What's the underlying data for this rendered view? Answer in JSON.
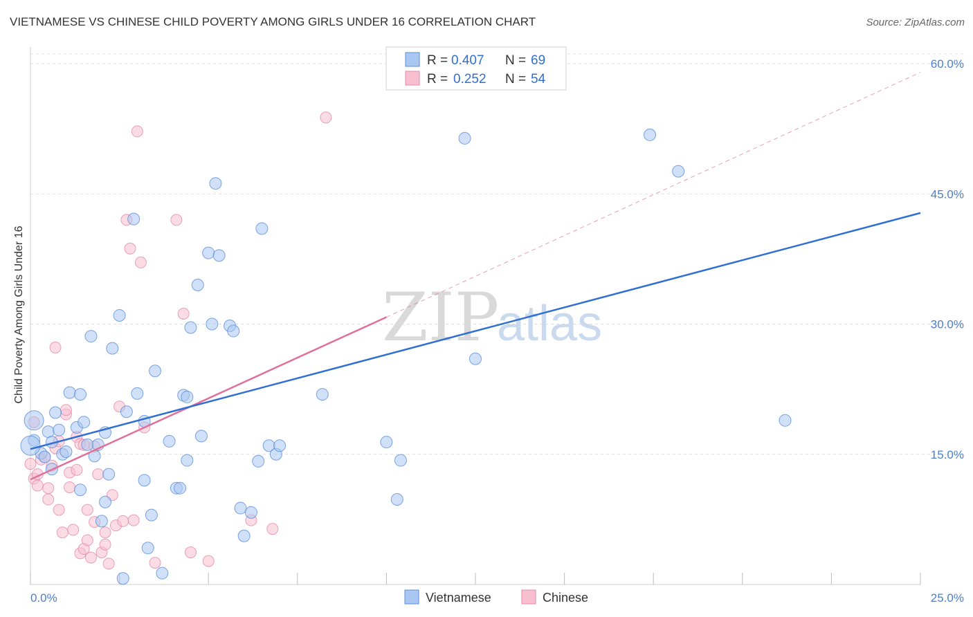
{
  "title": "VIETNAMESE VS CHINESE CHILD POVERTY AMONG GIRLS UNDER 16 CORRELATION CHART",
  "source": "Source: ZipAtlas.com",
  "watermark": {
    "zip": "ZIP",
    "atlas": "atlas"
  },
  "colors": {
    "vietnamese_fill": "#a9c7f2",
    "vietnamese_stroke": "#5b8fd8",
    "vietnamese_line": "#2f6fd1",
    "chinese_fill": "#f7bfd0",
    "chinese_stroke": "#e38aa8",
    "chinese_line": "#e0709a",
    "grid": "#dddddd"
  },
  "legend": {
    "rows": [
      {
        "r_label": "R =",
        "r_value": "0.407",
        "n_label": "N =",
        "n_value": "69"
      },
      {
        "r_label": "R =",
        "r_value": "0.252",
        "n_label": "N =",
        "n_value": "54"
      }
    ]
  },
  "chart_data": {
    "type": "scatter",
    "title": "VIETNAMESE VS CHINESE CHILD POVERTY AMONG GIRLS UNDER 16 CORRELATION CHART",
    "xlabel": "",
    "ylabel": "Child Poverty Among Girls Under 16",
    "xlim": [
      0,
      25
    ],
    "ylim": [
      0,
      60
    ],
    "x_tick_labels": [
      "0.0%",
      "25.0%"
    ],
    "y_ticks": [
      15,
      30,
      45,
      60
    ],
    "y_tick_labels": [
      "15.0%",
      "30.0%",
      "45.0%",
      "60.0%"
    ],
    "grid": true,
    "legend_position": "top-center",
    "series": [
      {
        "name": "Vietnamese",
        "R": 0.407,
        "N": 69,
        "trend": {
          "x": [
            0,
            25
          ],
          "y": [
            15.6,
            42.8
          ],
          "style": "solid"
        },
        "points": [
          [
            0.1,
            18.9
          ],
          [
            0.1,
            16.6
          ],
          [
            0.3,
            15.1
          ],
          [
            0.4,
            14.7
          ],
          [
            0.5,
            17.6
          ],
          [
            0.6,
            13.3
          ],
          [
            0.6,
            16.4
          ],
          [
            0.7,
            19.8
          ],
          [
            0.8,
            17.8
          ],
          [
            0.9,
            15.0
          ],
          [
            1.0,
            15.3
          ],
          [
            1.1,
            22.1
          ],
          [
            1.3,
            18.1
          ],
          [
            1.4,
            21.9
          ],
          [
            1.4,
            10.9
          ],
          [
            1.5,
            18.7
          ],
          [
            1.6,
            16.1
          ],
          [
            1.7,
            28.6
          ],
          [
            1.8,
            14.8
          ],
          [
            1.9,
            16.1
          ],
          [
            2.0,
            7.3
          ],
          [
            2.1,
            9.5
          ],
          [
            2.1,
            17.5
          ],
          [
            2.2,
            12.7
          ],
          [
            2.3,
            27.2
          ],
          [
            2.5,
            31.0
          ],
          [
            2.6,
            0.7
          ],
          [
            2.7,
            19.9
          ],
          [
            2.9,
            42.1
          ],
          [
            3.0,
            22.0
          ],
          [
            3.2,
            12.0
          ],
          [
            3.2,
            18.8
          ],
          [
            3.3,
            4.2
          ],
          [
            3.4,
            8.0
          ],
          [
            3.5,
            24.6
          ],
          [
            3.7,
            1.3
          ],
          [
            3.9,
            16.5
          ],
          [
            4.1,
            11.1
          ],
          [
            4.2,
            11.1
          ],
          [
            4.3,
            21.8
          ],
          [
            4.4,
            14.3
          ],
          [
            4.4,
            21.6
          ],
          [
            4.5,
            29.6
          ],
          [
            4.7,
            34.5
          ],
          [
            4.8,
            17.1
          ],
          [
            5.0,
            38.2
          ],
          [
            5.1,
            30.0
          ],
          [
            5.2,
            46.2
          ],
          [
            5.3,
            37.9
          ],
          [
            5.6,
            29.8
          ],
          [
            5.7,
            29.2
          ],
          [
            5.9,
            8.8
          ],
          [
            6.0,
            5.6
          ],
          [
            6.2,
            8.3
          ],
          [
            6.4,
            14.2
          ],
          [
            6.5,
            41.0
          ],
          [
            6.7,
            16.0
          ],
          [
            6.9,
            15.0
          ],
          [
            7.0,
            16.0
          ],
          [
            8.2,
            21.9
          ],
          [
            10.0,
            16.4
          ],
          [
            10.3,
            9.8
          ],
          [
            10.4,
            14.3
          ],
          [
            12.2,
            51.4
          ],
          [
            12.5,
            26.0
          ],
          [
            17.4,
            51.8
          ],
          [
            18.2,
            47.6
          ],
          [
            21.2,
            18.9
          ],
          [
            0.0,
            16.0
          ]
        ]
      },
      {
        "name": "Chinese",
        "R": 0.252,
        "N": 54,
        "trend": {
          "x": [
            0,
            10
          ],
          "y": [
            12.1,
            30.8
          ],
          "style": "solid",
          "extension": {
            "x": [
              10,
              25
            ],
            "y": [
              30.8,
              59.0
            ],
            "style": "dashed"
          }
        },
        "points": [
          [
            0.1,
            18.7
          ],
          [
            0.1,
            12.2
          ],
          [
            0.2,
            11.4
          ],
          [
            0.2,
            12.7
          ],
          [
            0.3,
            14.4
          ],
          [
            0.4,
            14.7
          ],
          [
            0.5,
            9.8
          ],
          [
            0.5,
            11.1
          ],
          [
            0.6,
            13.7
          ],
          [
            0.7,
            15.7
          ],
          [
            0.7,
            27.3
          ],
          [
            0.8,
            16.5
          ],
          [
            0.8,
            8.6
          ],
          [
            0.9,
            6.0
          ],
          [
            1.0,
            19.6
          ],
          [
            1.0,
            20.1
          ],
          [
            1.1,
            11.2
          ],
          [
            1.1,
            12.9
          ],
          [
            1.2,
            6.3
          ],
          [
            1.3,
            13.2
          ],
          [
            1.3,
            17.0
          ],
          [
            1.4,
            3.6
          ],
          [
            1.4,
            16.2
          ],
          [
            1.5,
            4.1
          ],
          [
            1.5,
            16.1
          ],
          [
            1.6,
            8.6
          ],
          [
            1.6,
            5.1
          ],
          [
            1.7,
            3.1
          ],
          [
            1.8,
            7.2
          ],
          [
            1.8,
            15.9
          ],
          [
            1.9,
            12.7
          ],
          [
            2.0,
            3.7
          ],
          [
            2.1,
            4.6
          ],
          [
            2.1,
            6.0
          ],
          [
            2.2,
            2.4
          ],
          [
            2.3,
            10.3
          ],
          [
            2.4,
            6.8
          ],
          [
            2.5,
            20.5
          ],
          [
            2.6,
            7.3
          ],
          [
            2.7,
            42.0
          ],
          [
            2.8,
            38.7
          ],
          [
            2.9,
            7.4
          ],
          [
            3.0,
            52.2
          ],
          [
            3.1,
            37.1
          ],
          [
            3.2,
            18.1
          ],
          [
            3.5,
            2.5
          ],
          [
            4.1,
            42.0
          ],
          [
            4.3,
            31.2
          ],
          [
            4.5,
            3.7
          ],
          [
            5.0,
            2.7
          ],
          [
            6.2,
            7.4
          ],
          [
            6.8,
            6.4
          ],
          [
            8.3,
            53.8
          ],
          [
            0.0,
            13.9
          ]
        ]
      }
    ]
  },
  "bottom_legend": [
    {
      "label": "Vietnamese"
    },
    {
      "label": "Chinese"
    }
  ]
}
